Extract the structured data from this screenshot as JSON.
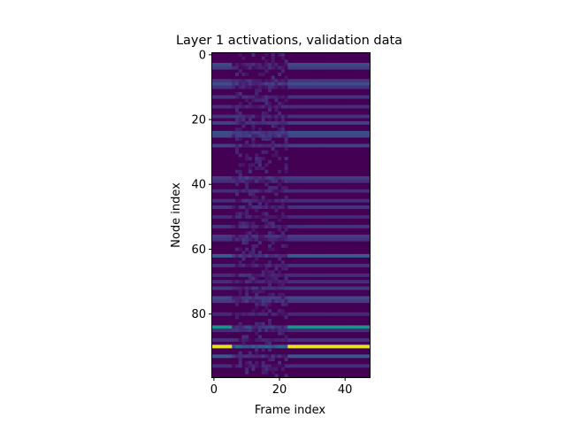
{
  "chart_data": {
    "type": "heatmap",
    "title": "Layer 1 activations, validation data",
    "xlabel": "Frame index",
    "ylabel": "Node index",
    "xlim": [
      0,
      48
    ],
    "ylim": [
      100,
      0
    ],
    "x_ticks": [
      0,
      20,
      40
    ],
    "y_ticks": [
      0,
      20,
      40,
      60,
      80
    ],
    "colormap": "viridis",
    "background_color": "#440154",
    "grid": false,
    "n_frames": 48,
    "n_nodes": 100,
    "rows": [
      {
        "node": 3,
        "base": 0.28,
        "mid": 0.1
      },
      {
        "node": 4,
        "base": 0.22,
        "mid": 0.1
      },
      {
        "node": 8,
        "base": 0.2,
        "mid": 0.12
      },
      {
        "node": 9,
        "base": 0.3,
        "mid": 0.18
      },
      {
        "node": 10,
        "base": 0.18,
        "mid": 0.1
      },
      {
        "node": 13,
        "base": 0.18,
        "mid": 0.12
      },
      {
        "node": 16,
        "base": 0.16,
        "mid": 0.12
      },
      {
        "node": 19,
        "base": 0.18,
        "mid": 0.12
      },
      {
        "node": 21,
        "base": 0.24,
        "mid": 0.15
      },
      {
        "node": 24,
        "base": 0.3,
        "mid": 0.2
      },
      {
        "node": 25,
        "base": 0.26,
        "mid": 0.18
      },
      {
        "node": 28,
        "base": 0.24,
        "mid": 0.15
      },
      {
        "node": 38,
        "base": 0.22,
        "mid": 0.18
      },
      {
        "node": 39,
        "base": 0.16,
        "mid": 0.12
      },
      {
        "node": 42,
        "base": 0.16,
        "mid": 0.12
      },
      {
        "node": 45,
        "base": 0.16,
        "mid": 0.12
      },
      {
        "node": 47,
        "base": 0.18,
        "mid": 0.12
      },
      {
        "node": 50,
        "base": 0.14,
        "mid": 0.1
      },
      {
        "node": 53,
        "base": 0.18,
        "mid": 0.12
      },
      {
        "node": 56,
        "base": 0.22,
        "mid": 0.14
      },
      {
        "node": 57,
        "base": 0.18,
        "mid": 0.12
      },
      {
        "node": 62,
        "base": 0.36,
        "mid": 0.18
      },
      {
        "node": 65,
        "base": 0.18,
        "mid": 0.12
      },
      {
        "node": 68,
        "base": 0.16,
        "mid": 0.12
      },
      {
        "node": 70,
        "base": 0.16,
        "mid": 0.12
      },
      {
        "node": 72,
        "base": 0.2,
        "mid": 0.14
      },
      {
        "node": 75,
        "base": 0.26,
        "mid": 0.16
      },
      {
        "node": 76,
        "base": 0.22,
        "mid": 0.16
      },
      {
        "node": 80,
        "base": 0.14,
        "mid": 0.1
      },
      {
        "node": 84,
        "base": 0.62,
        "mid": 0.2
      },
      {
        "node": 85,
        "base": 0.16,
        "mid": 0.12
      },
      {
        "node": 88,
        "base": 0.18,
        "mid": 0.1
      },
      {
        "node": 90,
        "base": 0.98,
        "mid": 0.35
      },
      {
        "node": 93,
        "base": 0.34,
        "mid": 0.15
      },
      {
        "node": 96,
        "base": 0.16,
        "mid": 0.1
      }
    ]
  }
}
